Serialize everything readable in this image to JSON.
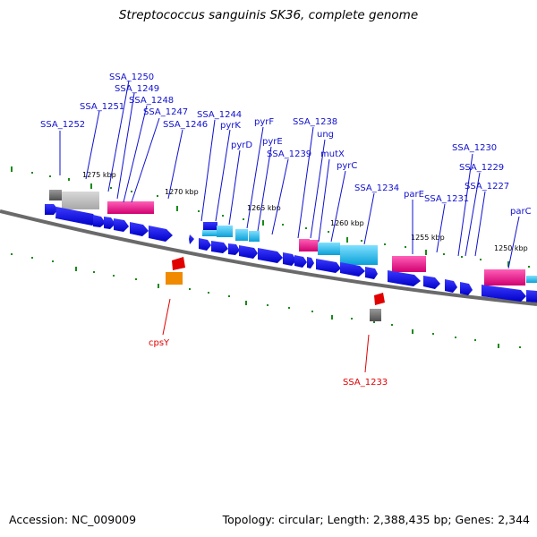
{
  "title": "Streptococcus sanguinis SK36, complete genome",
  "footer": {
    "accession": "Accession: NC_009009",
    "summary": "Topology: circular; Length: 2,388,435 bp; Genes: 2,344"
  },
  "colors": {
    "cds_blue": "#0a0af0",
    "cyan": "#1ab8e8",
    "pink": "#f0208c",
    "gray": "#909090",
    "red": "#e00000",
    "orange": "#f08a00",
    "tick_green": "#1a8a1a",
    "label_blue": "#1010d0",
    "backbone": "#6a6a6a"
  },
  "scale_labels": [
    "1275 kbp",
    "1270 kbp",
    "1265 kbp",
    "1260 kbp",
    "1255 kbp",
    "1250 kbp"
  ],
  "gene_labels": [
    "SSA_1252",
    "SSA_1251",
    "SSA_1250",
    "SSA_1249",
    "SSA_1248",
    "SSA_1247",
    "SSA_1246",
    "SSA_1244",
    "pyrK",
    "pyrD",
    "pyrF",
    "pyrE",
    "SSA_1239",
    "SSA_1238",
    "ung",
    "mutX",
    "pyrC",
    "SSA_1234",
    "parE",
    "SSA_1231",
    "SSA_1230",
    "SSA_1229",
    "SSA_1227",
    "parC"
  ],
  "lower_labels": [
    "cpsY",
    "SSA_1233"
  ]
}
